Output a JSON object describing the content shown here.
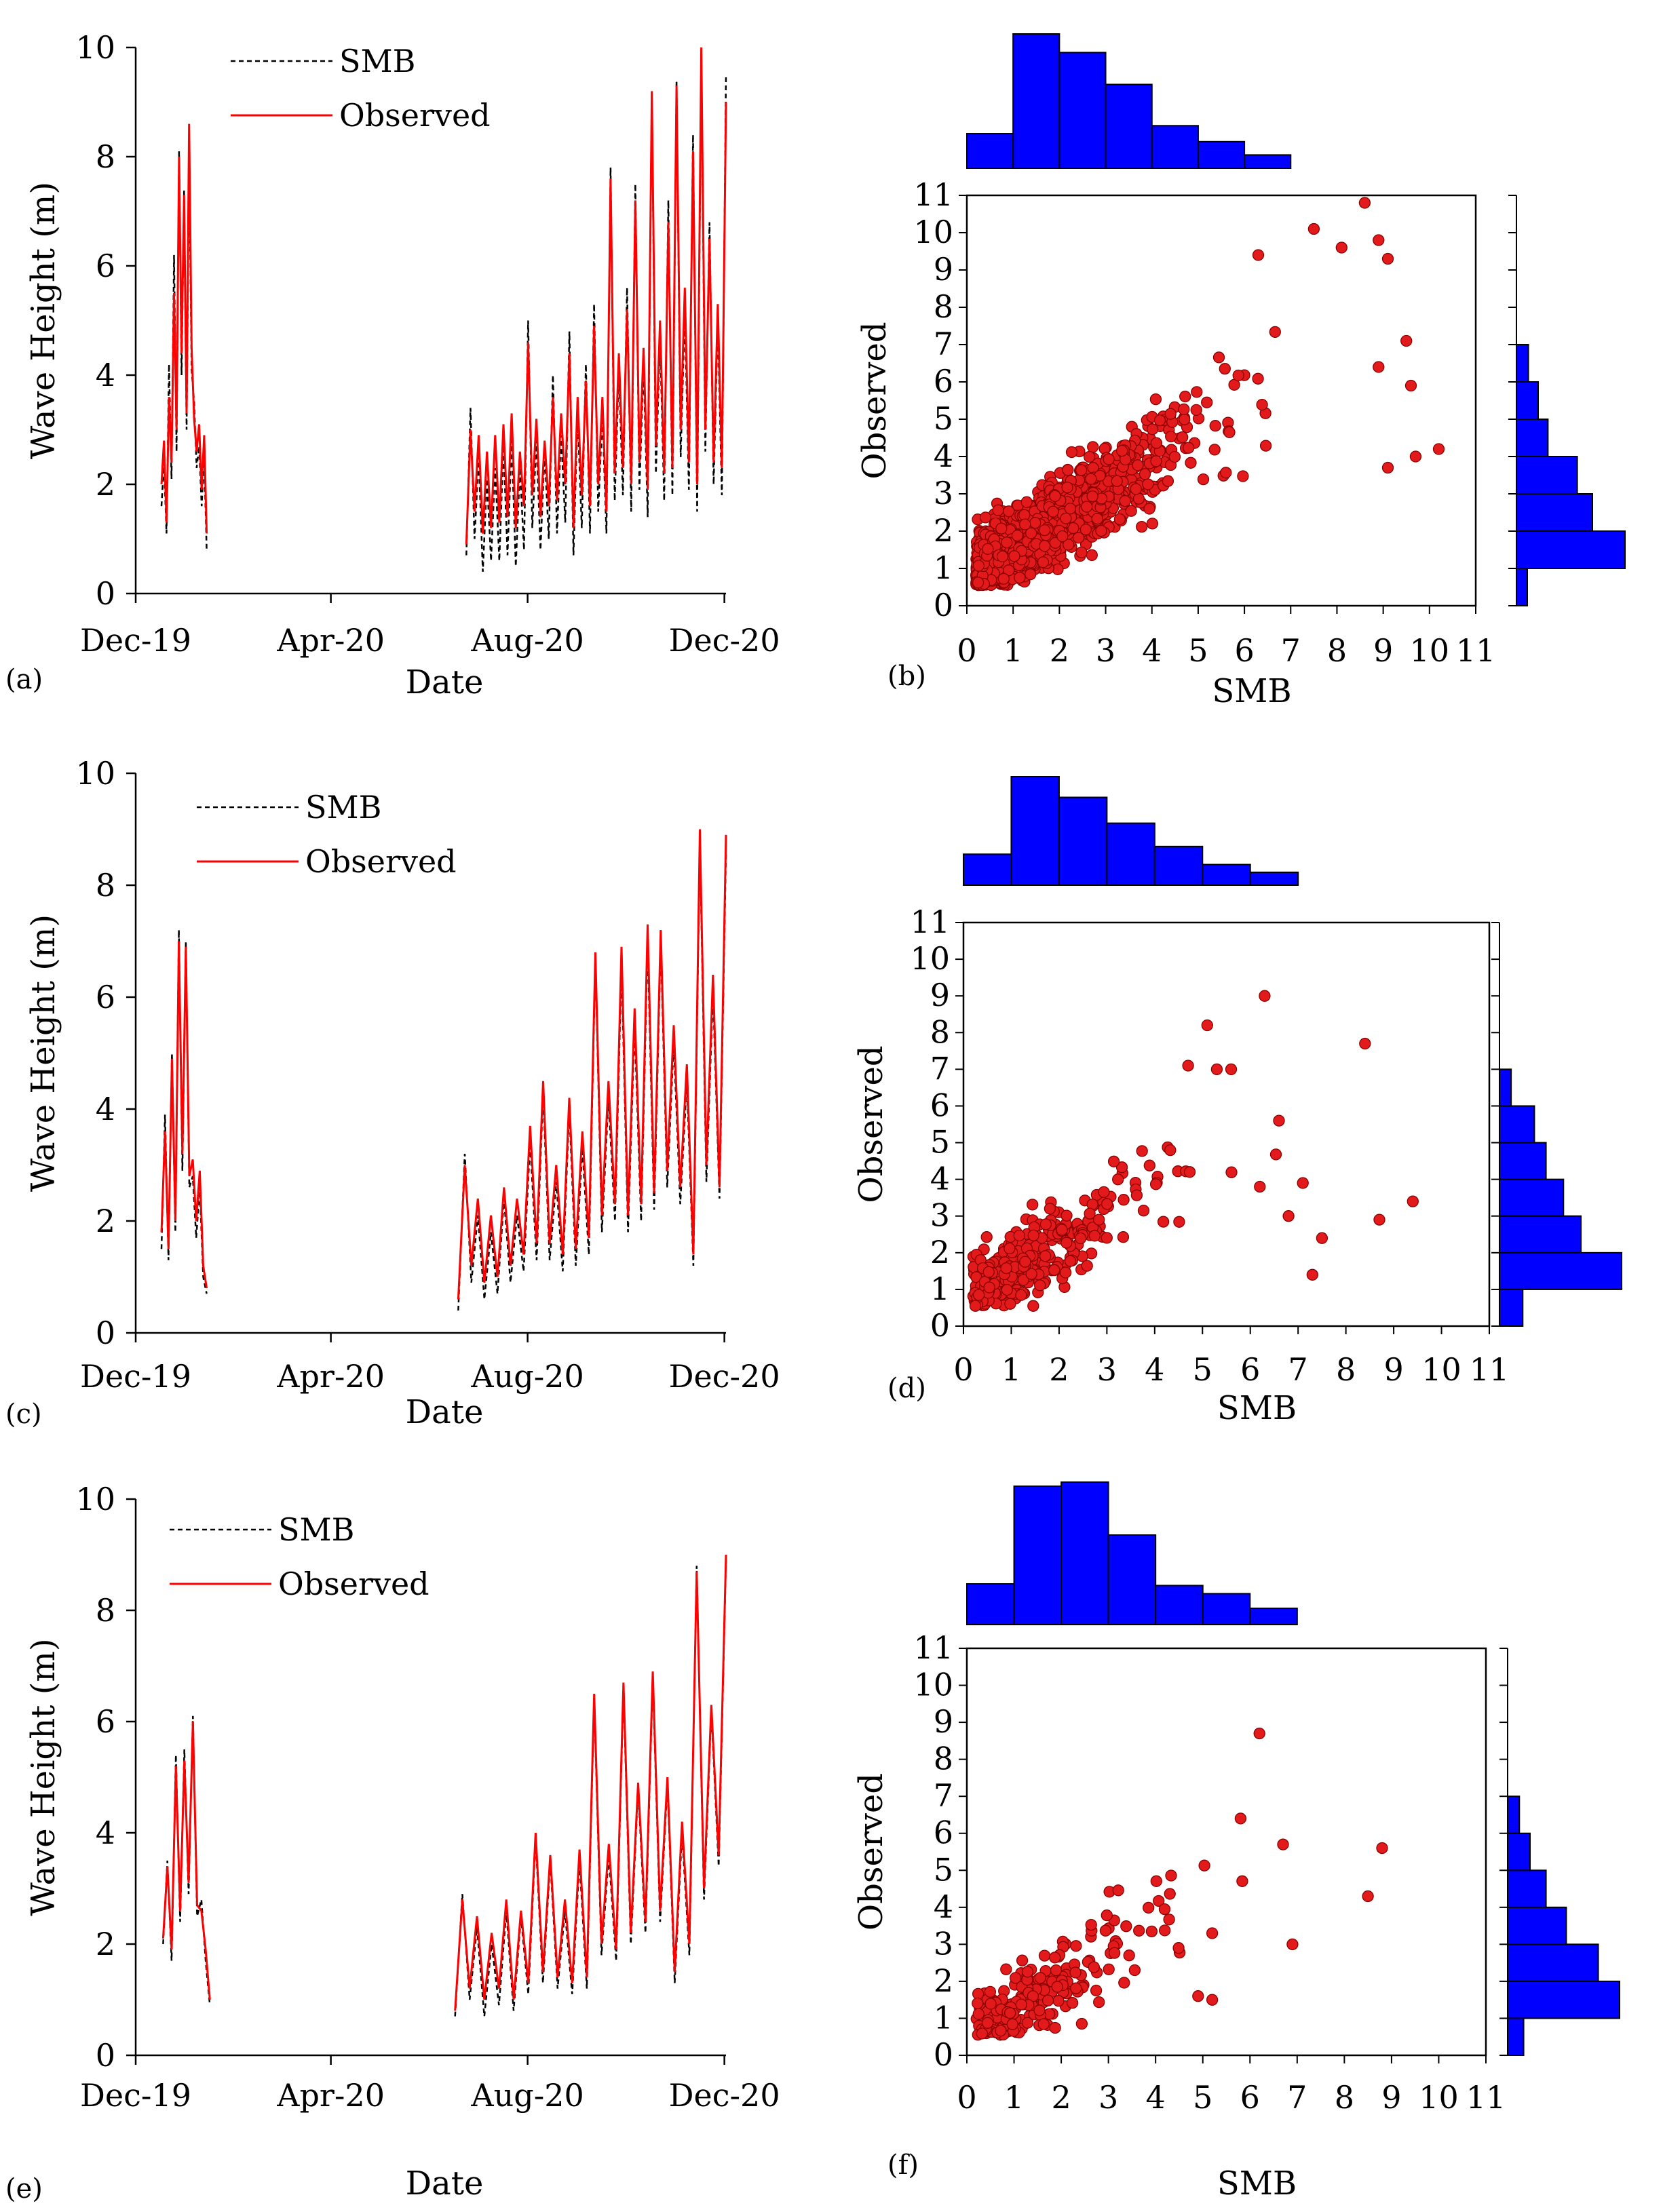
{
  "figure": {
    "time_series_panels": [
      {
        "label": "(a)",
        "xlabel": "Date",
        "ylabel": "Wave Height (m)",
        "y_ticks": [
          "0",
          "2",
          "4",
          "6",
          "8",
          "10"
        ],
        "x_ticks": [
          "Dec-19",
          "Apr-20",
          "Aug-20",
          "Dec-20"
        ],
        "legend": [
          "SMB",
          "Observed"
        ],
        "top_ylim": 10
      },
      {
        "label": "(c)",
        "xlabel": "Date",
        "ylabel": "Wave Height (m)",
        "y_ticks": [
          "0",
          "2",
          "4",
          "6",
          "8",
          "10"
        ],
        "x_ticks": [
          "Dec-19",
          "Apr-20",
          "Aug-20",
          "Dec-20"
        ],
        "legend": [
          "SMB",
          "Observed"
        ],
        "top_ylim": 10
      },
      {
        "label": "(e)",
        "xlabel": "Date",
        "ylabel": "Wave Height (m)",
        "y_ticks": [
          "0",
          "2",
          "4",
          "6",
          "8",
          "10"
        ],
        "x_ticks": [
          "Dec-19",
          "Apr-20",
          "Aug-20",
          "Dec-20"
        ],
        "legend": [
          "SMB",
          "Observed"
        ],
        "top_ylim": 10
      }
    ],
    "scatter_panels": [
      {
        "label": "(b)",
        "xlabel": "SMB",
        "ylabel": "Observed",
        "ticks": [
          "0",
          "1",
          "2",
          "3",
          "4",
          "5",
          "6",
          "7",
          "8",
          "9",
          "10",
          "11"
        ]
      },
      {
        "label": "(d)",
        "xlabel": "SMB",
        "ylabel": "Observed",
        "ticks": [
          "0",
          "1",
          "2",
          "3",
          "4",
          "5",
          "6",
          "7",
          "8",
          "9",
          "10",
          "11"
        ]
      },
      {
        "label": "(f)",
        "xlabel": "SMB",
        "ylabel": "Observed",
        "ticks": [
          "0",
          "1",
          "2",
          "3",
          "4",
          "5",
          "6",
          "7",
          "8",
          "9",
          "10",
          "11"
        ]
      }
    ]
  },
  "colors": {
    "observed": "#ff0000",
    "smb": "#000000",
    "scatter_fill": "#e31a1c",
    "scatter_edge": "#8b0000",
    "hist_fill": "#0000ff",
    "axis": "#000000"
  },
  "chart_data": [
    {
      "type": "line",
      "panel": "(a)",
      "title": "",
      "xlabel": "Date",
      "ylabel": "Wave Height (m)",
      "ylim": [
        0,
        10
      ],
      "x_domain_days": [
        0,
        366
      ],
      "x_tick_days": [
        0,
        121,
        243,
        365
      ],
      "x_tick_labels": [
        "Dec-19",
        "Apr-20",
        "Aug-20",
        "Dec-20"
      ],
      "legend": [
        "SMB",
        "Observed"
      ],
      "segments": [
        {
          "start_day": 16,
          "end_day": 44,
          "observed": [
            2.0,
            2.8,
            1.3,
            3.6,
            2.4,
            5.5,
            3.0,
            8.0,
            4.4,
            7.3,
            3.3,
            8.6,
            4.5,
            3.2,
            2.6,
            3.1,
            1.9,
            2.9,
            1.1
          ],
          "smb": [
            1.6,
            2.4,
            1.1,
            4.2,
            2.1,
            6.2,
            2.6,
            8.1,
            4.0,
            7.4,
            3.0,
            8.0,
            4.1,
            3.5,
            2.3,
            2.7,
            1.6,
            2.5,
            0.8
          ]
        },
        {
          "start_day": 205,
          "end_day": 366,
          "observed": [
            0.9,
            3.0,
            1.5,
            2.9,
            1.1,
            2.6,
            1.2,
            2.9,
            1.3,
            3.1,
            1.4,
            3.3,
            1.2,
            2.6,
            1.6,
            4.6,
            1.8,
            3.2,
            1.4,
            2.8,
            1.6,
            3.6,
            1.7,
            3.3,
            2.0,
            4.4,
            1.2,
            3.6,
            1.8,
            3.9,
            1.6,
            4.9,
            2.0,
            3.6,
            1.5,
            7.6,
            2.2,
            4.4,
            2.3,
            5.2,
            2.0,
            7.2,
            2.4,
            4.5,
            1.9,
            9.2,
            2.7,
            5.0,
            2.2,
            6.8,
            2.3,
            9.3,
            3.0,
            5.6,
            2.4,
            8.1,
            2.0,
            10.0,
            3.0,
            6.5,
            2.4,
            5.3,
            2.3,
            9.0
          ],
          "smb": [
            0.7,
            3.4,
            1.0,
            2.5,
            0.4,
            2.1,
            0.6,
            2.3,
            0.6,
            2.7,
            0.7,
            2.8,
            0.5,
            2.3,
            0.8,
            5.0,
            1.2,
            2.8,
            0.8,
            2.6,
            1.0,
            4.0,
            1.1,
            2.9,
            1.3,
            4.8,
            0.7,
            3.3,
            1.2,
            4.2,
            1.1,
            5.3,
            1.5,
            3.3,
            1.1,
            7.8,
            1.7,
            4.1,
            1.8,
            5.6,
            1.5,
            7.5,
            1.9,
            4.2,
            1.4,
            9.2,
            2.2,
            4.7,
            1.7,
            7.2,
            1.8,
            9.4,
            2.5,
            5.2,
            1.9,
            8.4,
            1.5,
            9.8,
            2.6,
            6.8,
            2.0,
            5.0,
            1.8,
            9.5
          ]
        }
      ]
    },
    {
      "type": "scatter",
      "panel": "(b)",
      "title": "",
      "xlabel": "SMB",
      "ylabel": "Observed",
      "xlim": [
        0,
        11
      ],
      "ylim": [
        0,
        11
      ],
      "n_points": 1500,
      "trend_slope": 0.95,
      "trend_intercept": 0.8,
      "outliers": [
        [
          8.6,
          10.8
        ],
        [
          8.1,
          9.6
        ],
        [
          8.9,
          9.8
        ],
        [
          9.1,
          9.3
        ],
        [
          9.5,
          7.1
        ],
        [
          8.9,
          6.4
        ],
        [
          9.6,
          5.9
        ],
        [
          10.2,
          4.2
        ],
        [
          9.7,
          4.0
        ],
        [
          9.1,
          3.7
        ],
        [
          7.5,
          10.1
        ],
        [
          6.3,
          9.4
        ]
      ],
      "hist_x": {
        "bin_edges": [
          0,
          1,
          2,
          3,
          4,
          5,
          6,
          7
        ],
        "counts": [
          260,
          1010,
          870,
          630,
          320,
          200,
          100
        ]
      },
      "hist_y": {
        "bin_edges": [
          0,
          1,
          2,
          3,
          4,
          5,
          6,
          7
        ],
        "counts": [
          100,
          1000,
          700,
          560,
          290,
          200,
          110
        ]
      }
    },
    {
      "type": "line",
      "panel": "(c)",
      "title": "",
      "xlabel": "Date",
      "ylabel": "Wave Height (m)",
      "ylim": [
        0,
        10
      ],
      "x_domain_days": [
        0,
        366
      ],
      "x_tick_days": [
        0,
        121,
        243,
        365
      ],
      "x_tick_labels": [
        "Dec-19",
        "Apr-20",
        "Aug-20",
        "Dec-20"
      ],
      "legend": [
        "SMB",
        "Observed"
      ],
      "segments": [
        {
          "start_day": 16,
          "end_day": 44,
          "observed": [
            1.8,
            3.6,
            1.5,
            4.9,
            2.0,
            7.0,
            3.2,
            6.9,
            2.8,
            3.1,
            2.0,
            2.9,
            1.2,
            0.8
          ],
          "smb": [
            1.5,
            3.9,
            1.3,
            5.0,
            1.8,
            7.2,
            2.9,
            7.0,
            2.6,
            2.8,
            1.7,
            2.6,
            1.0,
            0.7
          ]
        },
        {
          "start_day": 200,
          "end_day": 366,
          "observed": [
            0.6,
            3.0,
            1.2,
            2.4,
            0.9,
            2.1,
            1.0,
            2.6,
            1.2,
            2.4,
            1.4,
            3.7,
            1.6,
            4.5,
            1.6,
            3.0,
            1.4,
            4.2,
            1.5,
            3.6,
            1.7,
            6.8,
            2.1,
            4.5,
            2.3,
            6.9,
            2.1,
            5.8,
            2.3,
            7.3,
            2.5,
            7.2,
            2.9,
            5.5,
            2.6,
            4.8,
            1.4,
            9.0,
            3.0,
            6.4,
            2.6,
            8.9
          ],
          "smb": [
            0.4,
            3.2,
            0.9,
            2.1,
            0.6,
            1.8,
            0.7,
            2.4,
            0.9,
            2.1,
            1.1,
            3.4,
            1.3,
            4.3,
            1.3,
            2.7,
            1.1,
            4.0,
            1.2,
            3.3,
            1.4,
            6.7,
            1.8,
            4.2,
            2.0,
            6.6,
            1.8,
            5.5,
            2.0,
            7.0,
            2.2,
            7.0,
            2.6,
            5.2,
            2.3,
            4.5,
            1.2,
            8.8,
            2.7,
            6.1,
            2.4,
            8.6
          ]
        }
      ]
    },
    {
      "type": "scatter",
      "panel": "(d)",
      "title": "",
      "xlabel": "SMB",
      "ylabel": "Observed",
      "xlim": [
        0,
        11
      ],
      "ylim": [
        0,
        11
      ],
      "n_points": 330,
      "trend_slope": 0.95,
      "trend_intercept": 0.7,
      "outliers": [
        [
          6.3,
          9.0
        ],
        [
          5.1,
          8.2
        ],
        [
          8.4,
          7.7
        ],
        [
          4.7,
          7.1
        ],
        [
          5.3,
          7.0
        ],
        [
          5.6,
          7.0
        ],
        [
          6.6,
          5.6
        ],
        [
          6.2,
          3.8
        ],
        [
          7.1,
          3.9
        ],
        [
          7.5,
          2.4
        ],
        [
          8.7,
          2.9
        ],
        [
          9.4,
          3.4
        ],
        [
          7.3,
          1.4
        ],
        [
          6.8,
          3.0
        ]
      ],
      "hist_x": {
        "bin_edges": [
          0,
          1,
          2,
          3,
          4,
          5,
          6,
          7
        ],
        "counts": [
          60,
          210,
          170,
          120,
          75,
          40,
          25
        ]
      },
      "hist_y": {
        "bin_edges": [
          0,
          1,
          2,
          3,
          4,
          5,
          6,
          7
        ],
        "counts": [
          40,
          210,
          140,
          110,
          80,
          60,
          20
        ]
      }
    },
    {
      "type": "line",
      "panel": "(e)",
      "title": "",
      "xlabel": "Date",
      "ylabel": "Wave Height (m)",
      "ylim": [
        0,
        10
      ],
      "x_domain_days": [
        0,
        366
      ],
      "x_tick_days": [
        0,
        121,
        243,
        365
      ],
      "x_tick_labels": [
        "Dec-19",
        "Apr-20",
        "Aug-20",
        "Dec-20"
      ],
      "legend": [
        "SMB",
        "Observed"
      ],
      "segments": [
        {
          "start_day": 17,
          "end_day": 46,
          "observed": [
            2.1,
            3.4,
            1.9,
            5.2,
            2.6,
            5.3,
            3.1,
            6.0,
            2.7,
            2.6,
            1.9,
            1.0
          ],
          "smb": [
            2.0,
            3.5,
            1.7,
            5.4,
            2.4,
            5.5,
            2.9,
            6.1,
            2.5,
            2.8,
            1.7,
            0.9
          ]
        },
        {
          "start_day": 198,
          "end_day": 366,
          "observed": [
            0.8,
            2.8,
            1.2,
            2.5,
            1.0,
            2.2,
            1.2,
            2.8,
            1.0,
            2.6,
            1.3,
            4.0,
            1.5,
            3.6,
            1.4,
            2.8,
            1.3,
            3.7,
            1.4,
            6.5,
            2.0,
            3.8,
            1.9,
            6.7,
            2.2,
            4.9,
            2.4,
            6.9,
            2.6,
            5.0,
            1.5,
            4.2,
            2.0,
            8.7,
            3.0,
            6.3,
            3.6,
            9.0
          ],
          "smb": [
            0.7,
            2.9,
            1.0,
            2.3,
            0.7,
            2.0,
            0.9,
            2.6,
            0.8,
            2.5,
            1.1,
            3.9,
            1.3,
            3.5,
            1.2,
            2.6,
            1.1,
            3.5,
            1.2,
            6.4,
            1.8,
            3.6,
            1.7,
            6.6,
            2.0,
            4.8,
            2.2,
            6.8,
            2.4,
            4.9,
            1.3,
            4.0,
            1.8,
            8.8,
            2.8,
            6.2,
            3.4,
            8.9
          ]
        }
      ]
    },
    {
      "type": "scatter",
      "panel": "(f)",
      "title": "",
      "xlabel": "SMB",
      "ylabel": "Observed",
      "xlim": [
        0,
        11
      ],
      "ylim": [
        0,
        11
      ],
      "n_points": 230,
      "trend_slope": 0.95,
      "trend_intercept": 0.5,
      "outliers": [
        [
          6.2,
          8.7
        ],
        [
          8.8,
          5.6
        ],
        [
          8.5,
          4.3
        ],
        [
          6.9,
          3.0
        ],
        [
          5.8,
          6.4
        ],
        [
          6.7,
          5.7
        ],
        [
          5.2,
          3.3
        ],
        [
          4.9,
          1.6
        ],
        [
          5.2,
          1.5
        ]
      ],
      "hist_x": {
        "bin_edges": [
          0,
          1,
          2,
          3,
          4,
          5,
          6,
          7
        ],
        "counts": [
          50,
          170,
          175,
          110,
          48,
          38,
          20
        ]
      },
      "hist_y": {
        "bin_edges": [
          0,
          1,
          2,
          3,
          4,
          5,
          6,
          7
        ],
        "counts": [
          30,
          210,
          170,
          110,
          72,
          42,
          22
        ]
      }
    }
  ]
}
